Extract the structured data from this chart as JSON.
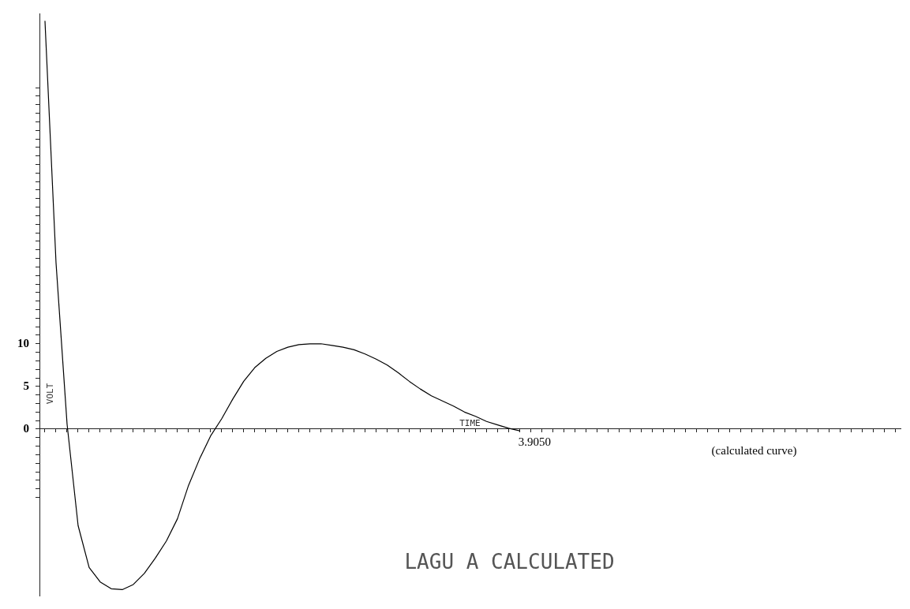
{
  "chart_data": {
    "type": "line",
    "title": "LAGU A CALCULATED",
    "xlabel": "TIME",
    "ylabel": "VOLT",
    "annotations": [
      "3.9050",
      "(calculated curve)"
    ],
    "categories": [
      null,
      null,
      null,
      null,
      null,
      null,
      null,
      null,
      null,
      null,
      null,
      null,
      null,
      null,
      null,
      null,
      null,
      null,
      null,
      null,
      null,
      null,
      null,
      null,
      null,
      null,
      null,
      null,
      null,
      null,
      null,
      null,
      null,
      null,
      null,
      null,
      null,
      null,
      null,
      null,
      null,
      null,
      null,
      null,
      null,
      null,
      null,
      null,
      null,
      null,
      null,
      null,
      null,
      null,
      null,
      null,
      null,
      null,
      null,
      null,
      null,
      null,
      null,
      null,
      null,
      null,
      null,
      null,
      null,
      null,
      null,
      null,
      null,
      null,
      null,
      null,
      null,
      null
    ],
    "series": [
      {
        "color": "#000000",
        "values": [
          47.8,
          19.5,
          0.6,
          -11.3,
          -16.2,
          -17.9,
          -18.7,
          -18.8,
          -18.2,
          -16.9,
          -15.1,
          -13.1,
          -10.5,
          -6.6,
          -3.5,
          -0.8,
          1.2,
          3.5,
          5.6,
          7.2,
          8.3,
          9.1,
          9.6,
          9.9,
          10,
          10,
          9.8,
          9.6,
          9.3,
          8.8,
          8.2,
          7.5,
          6.6,
          5.6,
          4.7,
          3.9,
          3.3,
          2.7,
          2,
          1.5,
          0.9,
          0.5,
          0.1,
          -0.2,
          null,
          null,
          null,
          null,
          null,
          null,
          null,
          null,
          null,
          null,
          null,
          null,
          null,
          null,
          null,
          null,
          null,
          null,
          null,
          null,
          null,
          null,
          null,
          null,
          null,
          null,
          null,
          null,
          null,
          null,
          null,
          null,
          null,
          null
        ]
      }
    ],
    "ylim": [
      -19.5,
      48.7
    ],
    "yticks": [
      {
        "value": -8,
        "label": null
      },
      {
        "value": -7,
        "label": null
      },
      {
        "value": -6,
        "label": null
      },
      {
        "value": -5,
        "label": null
      },
      {
        "value": -4,
        "label": null
      },
      {
        "value": -3,
        "label": null
      },
      {
        "value": -2,
        "label": null
      },
      {
        "value": -1,
        "label": null
      },
      0,
      {
        "value": 1,
        "label": null
      },
      {
        "value": 2,
        "label": null
      },
      {
        "value": 3,
        "label": null
      },
      {
        "value": 4,
        "label": null
      },
      5,
      {
        "value": 6,
        "label": null
      },
      {
        "value": 7,
        "label": null
      },
      {
        "value": 8,
        "label": null
      },
      {
        "value": 9,
        "label": null
      },
      10,
      {
        "value": 11,
        "label": null
      },
      {
        "value": 12,
        "label": null
      },
      {
        "value": 13,
        "label": null
      },
      {
        "value": 14,
        "label": null
      },
      {
        "value": 15,
        "label": null
      },
      {
        "value": 16,
        "label": null
      },
      {
        "value": 17,
        "label": null
      },
      {
        "value": 18,
        "label": null
      },
      {
        "value": 19,
        "label": null
      },
      {
        "value": 20,
        "label": null
      },
      {
        "value": 21,
        "label": null
      },
      {
        "value": 22,
        "label": null
      },
      {
        "value": 23,
        "label": null
      },
      {
        "value": 24,
        "label": null
      },
      {
        "value": 25,
        "label": null
      },
      {
        "value": 26,
        "label": null
      },
      {
        "value": 27,
        "label": null
      },
      {
        "value": 28,
        "label": null
      },
      {
        "value": 29,
        "label": null
      },
      {
        "value": 30,
        "label": null
      },
      {
        "value": 31,
        "label": null
      },
      {
        "value": 32,
        "label": null
      },
      {
        "value": 33,
        "label": null
      },
      {
        "value": 34,
        "label": null
      },
      {
        "value": 35,
        "label": null
      },
      {
        "value": 36,
        "label": null
      },
      {
        "value": 37,
        "label": null
      },
      {
        "value": 38,
        "label": null
      },
      {
        "value": 39,
        "label": null
      },
      {
        "value": 40,
        "label": null
      }
    ],
    "tick_labels": "y",
    "legend": false,
    "marker": "none",
    "line_style": "solid"
  }
}
